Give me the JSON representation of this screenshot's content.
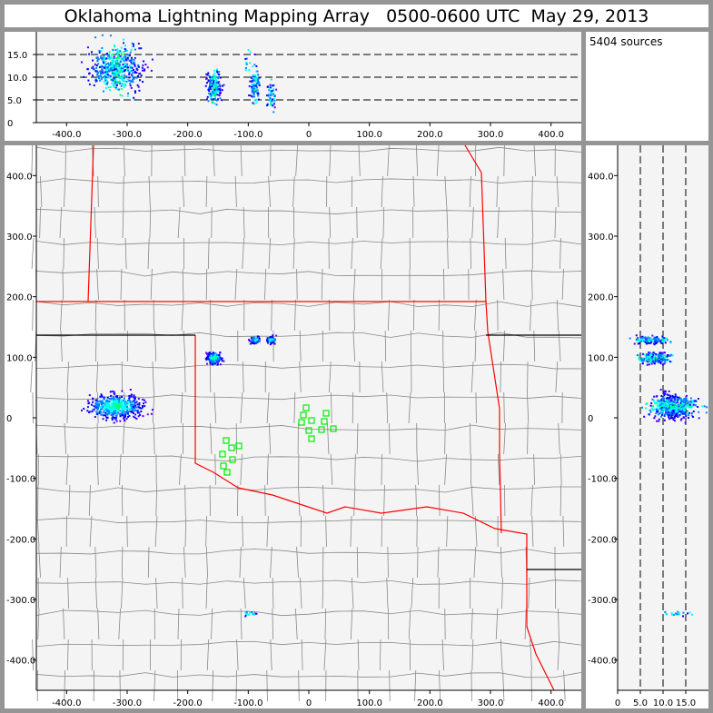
{
  "title": "Oklahoma Lightning Mapping Array   0500-0600 UTC  May 29, 2013",
  "source_count": "5404 sources",
  "colors": {
    "background": "#959595",
    "plot": "#f4f4f4",
    "state_border": "#ff0000",
    "county_border": "#888888",
    "station": "#00ee00",
    "density": [
      "#8000ff",
      "#4000ff",
      "#0000ff",
      "#0080ff",
      "#00ffff",
      "#00ff80"
    ]
  },
  "chart_data": {
    "type": "scatter",
    "panels": {
      "altitude_vs_x": {
        "xlim": [
          -450,
          450
        ],
        "ylim": [
          0,
          20
        ],
        "xticks": [
          "-400.0",
          "-300.0",
          "-200.0",
          "-100.0",
          "0",
          "100.0",
          "200.0",
          "300.0",
          "400.0"
        ],
        "yticks": [
          "0",
          "5.0",
          "10.0",
          "15.0"
        ],
        "dashed_lines_at": [
          5,
          10,
          15
        ]
      },
      "plan_view": {
        "xlim": [
          -450,
          450
        ],
        "ylim": [
          -450,
          450
        ],
        "xticks": [
          "-400.0",
          "-300.0",
          "-200.0",
          "-100.0",
          "0",
          "100.0",
          "200.0",
          "300.0",
          "400.0"
        ],
        "yticks": [
          "-400.0",
          "-300.0",
          "-200.0",
          "-100.0",
          "0",
          "100.0",
          "200.0",
          "300.0",
          "400.0"
        ]
      },
      "y_vs_altitude": {
        "xlim": [
          0,
          20
        ],
        "ylim": [
          -450,
          450
        ],
        "xticks": [
          "0",
          "5.0",
          "10.0",
          "15.0"
        ],
        "yticks": [
          "-400.0",
          "-300.0",
          "-200.0",
          "-100.0",
          "0",
          "100.0",
          "200.0",
          "300.0",
          "400.0"
        ],
        "dashed_lines_at": [
          5,
          10,
          15
        ]
      }
    },
    "source_clusters": [
      {
        "x": -320,
        "y": 20,
        "sx": 22,
        "sy": 10,
        "alt": 12,
        "salt": 2.5,
        "weight": 0.55
      },
      {
        "x": -158,
        "y": 100,
        "sx": 6,
        "sy": 5,
        "alt": 8,
        "salt": 1.6,
        "weight": 0.2
      },
      {
        "x": -90,
        "y": 130,
        "sx": 4,
        "sy": 3,
        "alt": 8,
        "salt": 1.5,
        "weight": 0.1
      },
      {
        "x": -63,
        "y": 130,
        "sx": 4,
        "sy": 3,
        "alt": 6,
        "salt": 1.5,
        "weight": 0.06
      },
      {
        "x": -100,
        "y": -322,
        "sx": 6,
        "sy": 2,
        "alt": 13,
        "salt": 2,
        "weight": 0.02
      }
    ],
    "stations": [
      [
        -4.5,
        16.5
      ],
      [
        -9,
        4.5
      ],
      [
        4.5,
        -4.5
      ],
      [
        -12,
        -7.5
      ],
      [
        28.5,
        7.5
      ],
      [
        25.5,
        -6
      ],
      [
        21,
        -19.5
      ],
      [
        40.5,
        -18
      ],
      [
        0,
        -21
      ],
      [
        4.5,
        -34.5
      ],
      [
        -136.5,
        -37.5
      ],
      [
        -127.5,
        -49.5
      ],
      [
        -115.5,
        -46.5
      ],
      [
        -142.5,
        -60
      ],
      [
        -126,
        -69
      ],
      [
        -141,
        -79.5
      ],
      [
        -135,
        -90
      ]
    ]
  }
}
